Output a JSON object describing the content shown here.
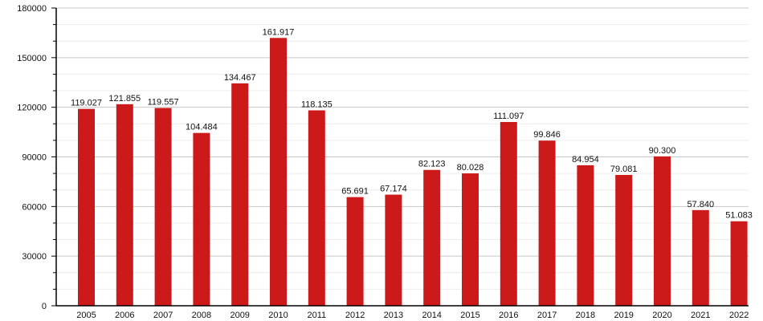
{
  "chart_data": {
    "type": "bar",
    "title": "",
    "xlabel": "",
    "ylabel": "",
    "ylim": [
      0,
      180000
    ],
    "yticks": [
      0,
      30000,
      60000,
      90000,
      120000,
      150000,
      180000
    ],
    "ytick_labels": [
      "0",
      "30000",
      "60000",
      "90000",
      "120000",
      "150000",
      "180000"
    ],
    "minor_grid_step": 10000,
    "grid": true,
    "bar_color": "#cc1a1a",
    "categories": [
      "2005",
      "2006",
      "2007",
      "2008",
      "2009",
      "2010",
      "2011",
      "2012",
      "2013",
      "2014",
      "2015",
      "2016",
      "2017",
      "2018",
      "2019",
      "2020",
      "2021",
      "2022"
    ],
    "values": [
      119027,
      121855,
      119557,
      104484,
      134467,
      161917,
      118135,
      65691,
      67174,
      82123,
      80028,
      111097,
      99846,
      84954,
      79081,
      90300,
      57840,
      51083
    ],
    "data_labels": [
      "119.027",
      "121.855",
      "119.557",
      "104.484",
      "134.467",
      "161.917",
      "118.135",
      "65.691",
      "67.174",
      "82.123",
      "80.028",
      "111.097",
      "99.846",
      "84.954",
      "79.081",
      "90.300",
      "57.840",
      "51.083"
    ]
  }
}
